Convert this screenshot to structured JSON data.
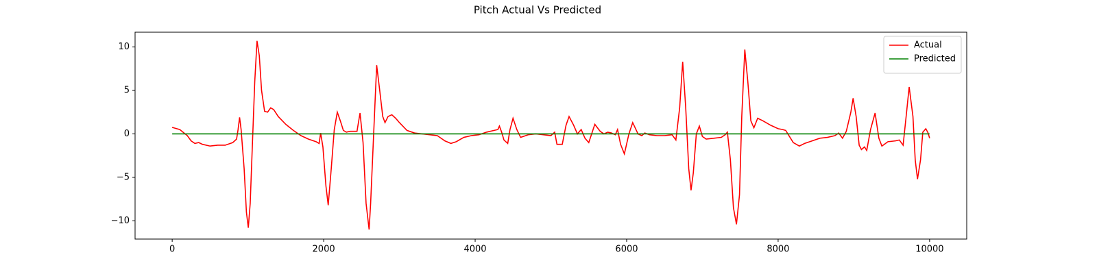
{
  "chart_data": {
    "type": "line",
    "title": "Pitch Actual Vs Predicted",
    "xlim": [
      -490,
      10490
    ],
    "ylim": [
      -12.1,
      11.7
    ],
    "xticks": [
      0,
      2000,
      4000,
      6000,
      8000,
      10000
    ],
    "yticks": [
      {
        "value": -10,
        "label": "−10"
      },
      {
        "value": -5,
        "label": "−5"
      },
      0,
      5,
      10
    ],
    "legend": "upper right",
    "series": [
      {
        "name": "Actual",
        "color": "#ff0000",
        "x": [
          0,
          100,
          200,
          250,
          300,
          350,
          400,
          500,
          600,
          700,
          800,
          850,
          870,
          890,
          910,
          950,
          980,
          1005,
          1030,
          1060,
          1090,
          1120,
          1150,
          1180,
          1220,
          1260,
          1300,
          1340,
          1400,
          1500,
          1600,
          1700,
          1800,
          1900,
          1940,
          1960,
          1990,
          2030,
          2060,
          2100,
          2140,
          2180,
          2220,
          2260,
          2300,
          2350,
          2440,
          2480,
          2520,
          2560,
          2600,
          2620,
          2650,
          2680,
          2700,
          2740,
          2780,
          2810,
          2850,
          2900,
          2950,
          3000,
          3100,
          3200,
          3300,
          3400,
          3500,
          3600,
          3680,
          3750,
          3850,
          3950,
          4050,
          4150,
          4250,
          4300,
          4320,
          4350,
          4380,
          4430,
          4460,
          4500,
          4550,
          4600,
          4700,
          4800,
          4900,
          5000,
          5050,
          5080,
          5150,
          5200,
          5240,
          5300,
          5350,
          5400,
          5450,
          5500,
          5580,
          5650,
          5700,
          5750,
          5800,
          5850,
          5880,
          5920,
          5970,
          6030,
          6080,
          6150,
          6200,
          6240,
          6300,
          6400,
          6500,
          6600,
          6650,
          6700,
          6740,
          6780,
          6820,
          6850,
          6880,
          6920,
          6960,
          7000,
          7050,
          7150,
          7250,
          7300,
          7330,
          7370,
          7410,
          7450,
          7490,
          7520,
          7560,
          7600,
          7640,
          7680,
          7730,
          7800,
          7900,
          8000,
          8060,
          8100,
          8150,
          8200,
          8280,
          8350,
          8450,
          8550,
          8650,
          8750,
          8800,
          8850,
          8900,
          8960,
          8990,
          9030,
          9070,
          9100,
          9140,
          9170,
          9220,
          9280,
          9330,
          9370,
          9450,
          9550,
          9600,
          9650,
          9690,
          9730,
          9780,
          9810,
          9840,
          9880,
          9910,
          9950,
          9980,
          10000
        ],
        "values": [
          0.75,
          0.5,
          -0.2,
          -0.8,
          -1.1,
          -1.0,
          -1.2,
          -1.4,
          -1.3,
          -1.3,
          -1.0,
          -0.6,
          0.5,
          1.9,
          0.5,
          -4,
          -9,
          -10.8,
          -8,
          -1,
          6,
          10.7,
          9,
          5,
          2.6,
          2.5,
          3.0,
          2.8,
          2.0,
          1.1,
          0.4,
          -0.2,
          -0.6,
          -0.9,
          -1.1,
          0.1,
          -1.5,
          -6,
          -8.2,
          -4,
          0.5,
          2.5,
          1.5,
          0.4,
          0.2,
          0.3,
          0.3,
          2.4,
          -1,
          -8,
          -11,
          -8,
          -2,
          4,
          7.9,
          5,
          2,
          1.3,
          2.0,
          2.2,
          1.8,
          1.3,
          0.4,
          0.1,
          0.0,
          -0.1,
          -0.2,
          -0.8,
          -1.1,
          -0.9,
          -0.4,
          -0.2,
          -0.1,
          0.2,
          0.4,
          0.5,
          0.9,
          0.2,
          -0.7,
          -1.1,
          0.5,
          1.8,
          0.5,
          -0.4,
          -0.1,
          0.0,
          -0.1,
          -0.2,
          0.2,
          -1.2,
          -1.2,
          1.0,
          2.0,
          1.0,
          0.0,
          0.5,
          -0.5,
          -1.0,
          1.1,
          0.3,
          0.0,
          0.2,
          0.1,
          -0.1,
          0.5,
          -1.2,
          -2.3,
          0.0,
          1.3,
          0.0,
          -0.2,
          0.1,
          -0.1,
          -0.2,
          -0.2,
          -0.1,
          -0.7,
          3,
          8.3,
          3,
          -4,
          -6.5,
          -4.5,
          0,
          0.9,
          -0.3,
          -0.6,
          -0.5,
          -0.4,
          -0.1,
          0.2,
          -3,
          -8.5,
          -10.4,
          -7,
          2,
          9.7,
          6,
          1.5,
          0.7,
          1.8,
          1.5,
          1.0,
          0.6,
          0.5,
          0.4,
          -0.3,
          -1.0,
          -1.4,
          -1.1,
          -0.8,
          -0.5,
          -0.4,
          -0.2,
          0.1,
          -0.5,
          0.3,
          2.5,
          4.1,
          2,
          -1.3,
          -1.8,
          -1.5,
          -1.9,
          0.5,
          2.4,
          -0.5,
          -1.4,
          -0.9,
          -0.8,
          -0.7,
          -1.3,
          2,
          5.4,
          2,
          -3,
          -5.2,
          -3,
          0.2,
          0.6,
          0.1,
          -0.5
        ]
      },
      {
        "name": "Predicted",
        "color": "#008000",
        "x": [
          0,
          10000
        ],
        "values": [
          0,
          0
        ]
      }
    ]
  }
}
